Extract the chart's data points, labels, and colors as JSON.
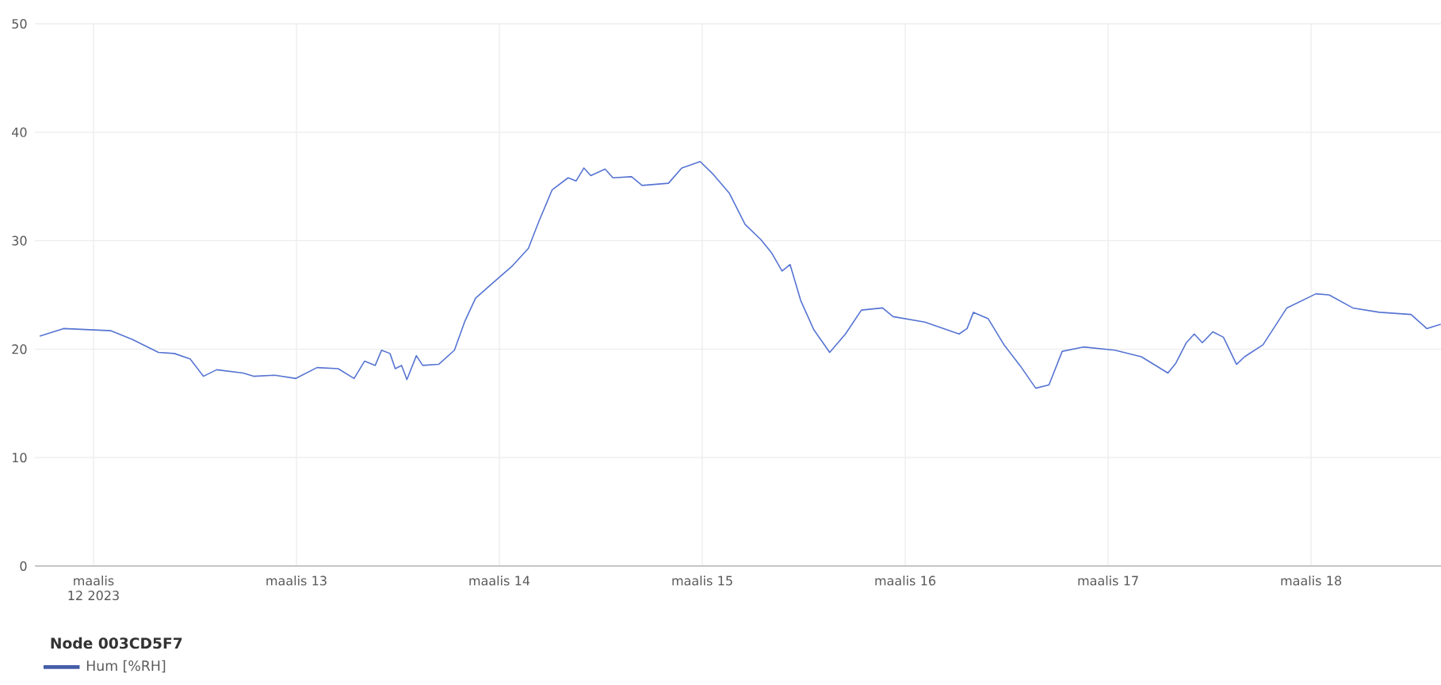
{
  "chart_data": {
    "type": "line",
    "legend_title": "Node 003CD5F7",
    "xlim": [
      "2023-03-11T17:04",
      "2023-03-18T15:22"
    ],
    "xticks": [
      {
        "value": "2023-03-12",
        "label": "maalis 12 2023"
      },
      {
        "value": "2023-03-13",
        "label": "maalis 13"
      },
      {
        "value": "2023-03-14",
        "label": "maalis 14"
      },
      {
        "value": "2023-03-15",
        "label": "maalis 15"
      },
      {
        "value": "2023-03-16",
        "label": "maalis 16"
      },
      {
        "value": "2023-03-17",
        "label": "maalis 17"
      },
      {
        "value": "2023-03-18",
        "label": "maalis 18"
      }
    ],
    "ylim": [
      0,
      50
    ],
    "yticks": [
      0,
      10,
      20,
      30,
      40,
      50
    ],
    "grid": true,
    "legend": "bottom left",
    "marker": "none",
    "line_style": "solid",
    "x": [
      "2023-03-11T17:38",
      "2023-03-11T20:27",
      "2023-03-12T02:04",
      "2023-03-12T04:34",
      "2023-03-12T07:41",
      "2023-03-12T09:34",
      "2023-03-12T11:26",
      "2023-03-12T13:00",
      "2023-03-12T14:34",
      "2023-03-12T17:41",
      "2023-03-12T18:56",
      "2023-03-12T21:26",
      "2023-03-12T23:56",
      "2023-03-13T02:26",
      "2023-03-13T04:56",
      "2023-03-13T06:49",
      "2023-03-13T08:04",
      "2023-03-13T09:19",
      "2023-03-13T10:04",
      "2023-03-13T11:04",
      "2023-03-13T11:41",
      "2023-03-13T12:26",
      "2023-03-13T13:04",
      "2023-03-13T14:11",
      "2023-03-13T14:56",
      "2023-03-13T16:49",
      "2023-03-13T18:41",
      "2023-03-13T19:56",
      "2023-03-13T21:11",
      "2023-03-13T23:04",
      "2023-03-14T01:34",
      "2023-03-14T03:26",
      "2023-03-14T04:41",
      "2023-03-14T06:15",
      "2023-03-14T08:08",
      "2023-03-14T09:04",
      "2023-03-14T10:00",
      "2023-03-14T10:49",
      "2023-03-14T12:30",
      "2023-03-14T13:26",
      "2023-03-14T15:38",
      "2023-03-14T16:53",
      "2023-03-14T20:00",
      "2023-03-14T21:34",
      "2023-03-14T23:45",
      "2023-03-15T01:19",
      "2023-03-15T03:11",
      "2023-03-15T05:04",
      "2023-03-15T06:56",
      "2023-03-15T08:11",
      "2023-03-15T09:26",
      "2023-03-15T10:23",
      "2023-03-15T11:38",
      "2023-03-15T13:11",
      "2023-03-15T15:04",
      "2023-03-15T16:56",
      "2023-03-15T18:49",
      "2023-03-15T21:19",
      "2023-03-15T22:34",
      "2023-03-16T02:19",
      "2023-03-16T06:22",
      "2023-03-16T07:19",
      "2023-03-16T08:04",
      "2023-03-16T09:49",
      "2023-03-16T11:41",
      "2023-03-16T13:34",
      "2023-03-16T15:26",
      "2023-03-16T17:00",
      "2023-03-16T18:34",
      "2023-03-16T21:04",
      "2023-03-17T00:49",
      "2023-03-17T03:56",
      "2023-03-17T07:04",
      "2023-03-17T08:00",
      "2023-03-17T09:15",
      "2023-03-17T10:11",
      "2023-03-17T11:08",
      "2023-03-17T12:23",
      "2023-03-17T13:38",
      "2023-03-17T15:11",
      "2023-03-17T16:08",
      "2023-03-17T18:19",
      "2023-03-17T21:08",
      "2023-03-18T00:34",
      "2023-03-18T02:08",
      "2023-03-18T04:56",
      "2023-03-18T08:04",
      "2023-03-18T11:49",
      "2023-03-18T13:41",
      "2023-03-18T15:20"
    ],
    "series": [
      {
        "name": "Hum [%RH]",
        "color": "#5674d2",
        "values": [
          21.2,
          21.9,
          21.7,
          20.9,
          19.7,
          19.6,
          19.1,
          17.5,
          18.1,
          17.8,
          17.5,
          17.6,
          17.3,
          18.3,
          18.2,
          17.3,
          18.9,
          18.5,
          19.9,
          19.6,
          18.2,
          18.5,
          17.2,
          19.4,
          18.5,
          18.6,
          19.9,
          22.6,
          24.7,
          26.0,
          27.7,
          29.3,
          31.8,
          34.7,
          35.8,
          35.5,
          36.7,
          36.0,
          36.6,
          35.8,
          35.9,
          35.1,
          35.3,
          36.7,
          37.3,
          36.1,
          34.4,
          31.5,
          30.1,
          28.9,
          27.2,
          27.8,
          24.5,
          21.8,
          19.7,
          21.4,
          23.6,
          23.8,
          23.0,
          22.5,
          21.4,
          21.9,
          23.4,
          22.8,
          20.4,
          18.5,
          16.4,
          16.7,
          19.8,
          20.2,
          19.9,
          19.3,
          17.8,
          18.7,
          20.6,
          21.4,
          20.6,
          21.6,
          21.1,
          18.6,
          19.3,
          20.4,
          23.8,
          25.1,
          25.0,
          23.8,
          23.4,
          23.2,
          21.9,
          22.3
        ]
      }
    ]
  }
}
